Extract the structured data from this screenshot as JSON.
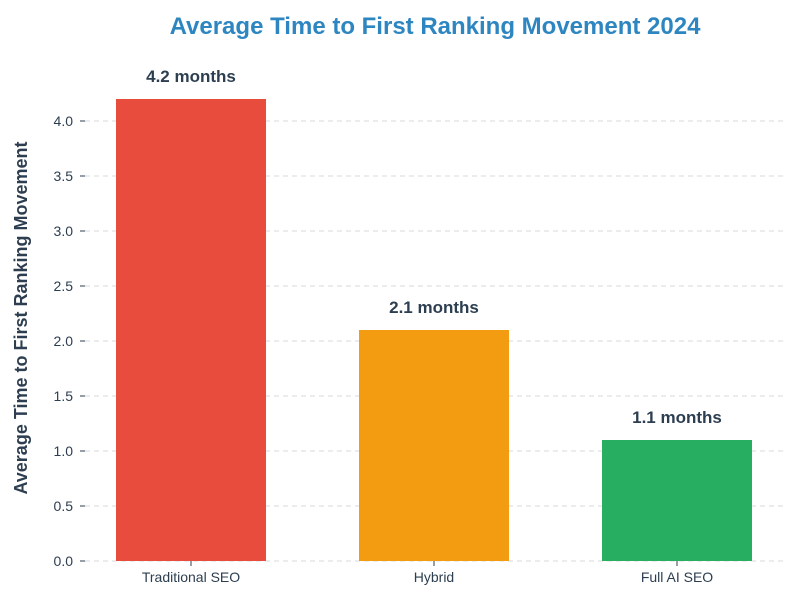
{
  "chart_data": {
    "type": "bar",
    "title": "Average Time to First Ranking Movement 2024",
    "xlabel": "",
    "ylabel": "Average Time to First Ranking Movement",
    "categories": [
      "Traditional SEO",
      "Hybrid",
      "Full AI SEO"
    ],
    "values": [
      4.2,
      2.1,
      1.1
    ],
    "value_labels": [
      "4.2 months",
      "2.1 months",
      "1.1 months"
    ],
    "ylim": [
      0,
      4.2
    ],
    "yticks": [
      0.0,
      0.5,
      1.0,
      1.5,
      2.0,
      2.5,
      3.0,
      3.5,
      4.0
    ],
    "ytick_labels": [
      "0.0",
      "0.5",
      "1.0",
      "1.5",
      "2.0",
      "2.5",
      "3.0",
      "3.5",
      "4.0"
    ],
    "grid": true,
    "legend": "none"
  },
  "colors": {
    "title": "#2e86c1",
    "text": "#2c3e50",
    "grid": "#d5d8dc",
    "bars": [
      "#e74c3c",
      "#f39c12",
      "#27ae60"
    ]
  }
}
